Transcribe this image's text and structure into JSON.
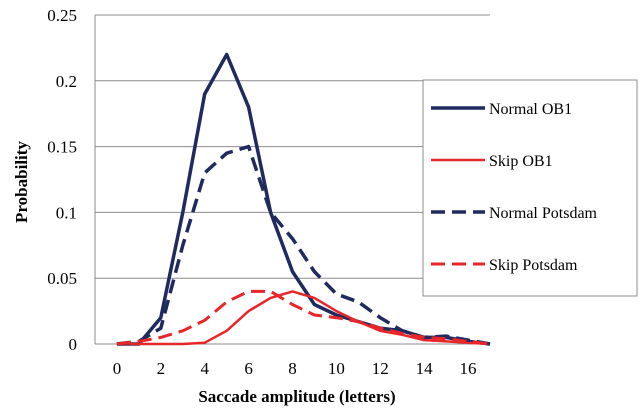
{
  "chart_data": {
    "type": "line",
    "title": "",
    "xlabel": "Saccade amplitude (letters)",
    "ylabel": "Probability",
    "xlim": [
      -1,
      17
    ],
    "ylim": [
      0,
      0.25
    ],
    "xticks": [
      0,
      2,
      4,
      6,
      8,
      10,
      12,
      14,
      16
    ],
    "xtick_labels": [
      "0",
      "2",
      "4",
      "6",
      "8",
      "10",
      "12",
      "14",
      "16"
    ],
    "yticks": [
      0,
      0.05,
      0.1,
      0.15,
      0.2,
      0.25
    ],
    "ytick_labels": [
      "0",
      "0.05",
      "0.1",
      "0.15",
      "0.2",
      "0.25"
    ],
    "grid": "horizontal",
    "legend_position": "right",
    "series": [
      {
        "name": "Normal OB1",
        "color": "#1f2a5e",
        "style": "solid",
        "width": 3.5,
        "points": [
          [
            0,
            0
          ],
          [
            1,
            0
          ],
          [
            2,
            0.02
          ],
          [
            3,
            0.1
          ],
          [
            4,
            0.19
          ],
          [
            5,
            0.22
          ],
          [
            6,
            0.18
          ],
          [
            7,
            0.1
          ],
          [
            8,
            0.055
          ],
          [
            9,
            0.03
          ],
          [
            10,
            0.022
          ],
          [
            11,
            0.017
          ],
          [
            12,
            0.012
          ],
          [
            13,
            0.01
          ],
          [
            14,
            0.005
          ],
          [
            15,
            0.005
          ],
          [
            16,
            0.002
          ],
          [
            17,
            0
          ]
        ]
      },
      {
        "name": "Skip OB1",
        "color": "#e8262a",
        "style": "solid",
        "width": 2.5,
        "points": [
          [
            0,
            0
          ],
          [
            1,
            0
          ],
          [
            2,
            0
          ],
          [
            3,
            0
          ],
          [
            4,
            0.001
          ],
          [
            5,
            0.01
          ],
          [
            6,
            0.025
          ],
          [
            7,
            0.035
          ],
          [
            8,
            0.04
          ],
          [
            9,
            0.035
          ],
          [
            10,
            0.025
          ],
          [
            11,
            0.017
          ],
          [
            12,
            0.01
          ],
          [
            13,
            0.007
          ],
          [
            14,
            0.003
          ],
          [
            15,
            0.002
          ],
          [
            16,
            0.001
          ],
          [
            17,
            0
          ]
        ]
      },
      {
        "name": "Normal Potsdam",
        "color": "#1f2a5e",
        "style": "dashed",
        "width": 3.5,
        "points": [
          [
            0,
            0
          ],
          [
            1,
            0.002
          ],
          [
            2,
            0.012
          ],
          [
            3,
            0.075
          ],
          [
            4,
            0.13
          ],
          [
            5,
            0.145
          ],
          [
            6,
            0.15
          ],
          [
            7,
            0.1
          ],
          [
            8,
            0.08
          ],
          [
            9,
            0.055
          ],
          [
            10,
            0.038
          ],
          [
            11,
            0.032
          ],
          [
            12,
            0.02
          ],
          [
            13,
            0.01
          ],
          [
            14,
            0.005
          ],
          [
            15,
            0.006
          ],
          [
            16,
            0.003
          ],
          [
            17,
            0
          ]
        ]
      },
      {
        "name": "Skip Potsdam",
        "color": "#e8262a",
        "style": "dashed",
        "width": 3,
        "points": [
          [
            0,
            0
          ],
          [
            1,
            0.002
          ],
          [
            2,
            0.005
          ],
          [
            3,
            0.01
          ],
          [
            4,
            0.018
          ],
          [
            5,
            0.032
          ],
          [
            6,
            0.04
          ],
          [
            7,
            0.04
          ],
          [
            8,
            0.03
          ],
          [
            9,
            0.022
          ],
          [
            10,
            0.02
          ],
          [
            11,
            0.017
          ],
          [
            12,
            0.012
          ],
          [
            13,
            0.008
          ],
          [
            14,
            0.005
          ],
          [
            15,
            0.004
          ],
          [
            16,
            0.002
          ],
          [
            17,
            0
          ]
        ]
      }
    ]
  }
}
